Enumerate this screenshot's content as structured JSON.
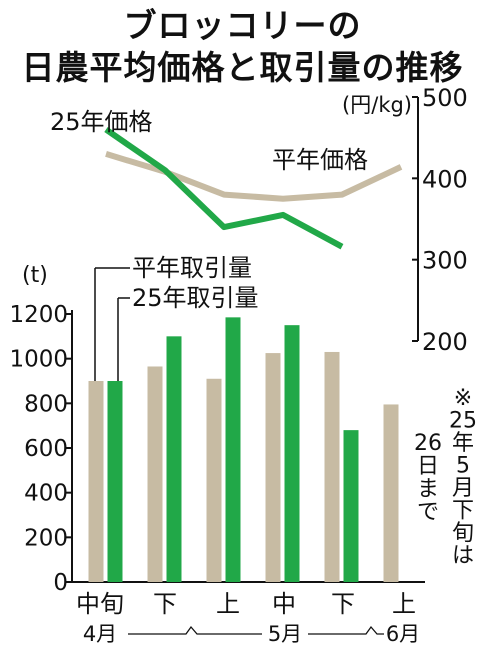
{
  "title_line1": "ブロッコリーの",
  "title_line2": "日農平均価格と取引量の推移",
  "chart_data": {
    "type": "bar+line",
    "categories": [
      "中旬",
      "下",
      "上",
      "中",
      "下",
      "上"
    ],
    "month_labels": [
      "4月",
      "5月",
      "6月"
    ],
    "bar_axis": {
      "unit": "(t)",
      "range": [
        0,
        1200
      ],
      "ticks": [
        0,
        200,
        400,
        600,
        800,
        1000,
        1200
      ]
    },
    "price_axis": {
      "unit": "(円/kg)",
      "range": [
        200,
        500
      ],
      "ticks": [
        200,
        300,
        400,
        500
      ]
    },
    "bar_series": [
      {
        "name": "平年取引量",
        "color": "#c7bba3",
        "values": [
          900,
          965,
          910,
          1025,
          1030,
          795
        ]
      },
      {
        "name": "25年取引量",
        "color": "#21a848",
        "values": [
          900,
          1100,
          1185,
          1150,
          680,
          null
        ]
      }
    ],
    "line_series": [
      {
        "name": "平年価格",
        "color": "#c7bba3",
        "values": [
          430,
          408,
          380,
          375,
          380,
          414
        ]
      },
      {
        "name": "25年価格",
        "color": "#21a848",
        "values": [
          460,
          410,
          340,
          355,
          316,
          null
        ]
      }
    ],
    "note": "※25年5月下旬は26日まで"
  }
}
